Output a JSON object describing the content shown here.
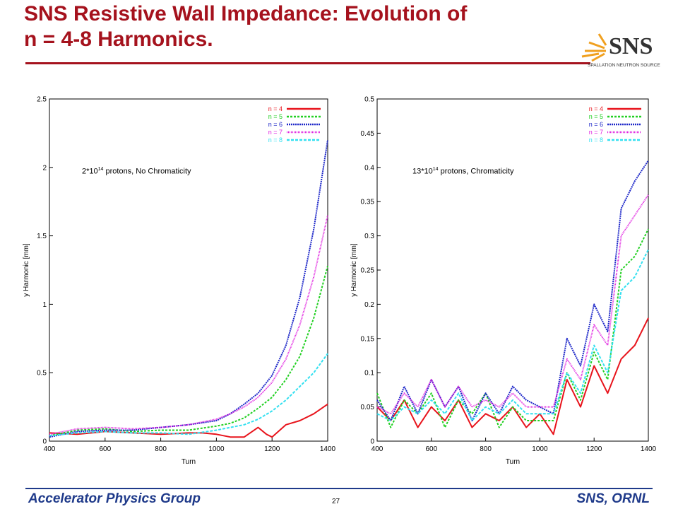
{
  "slide": {
    "title_line1": "SNS Resistive Wall Impedance: Evolution of",
    "title_line2": "n = 4-8 Harmonics.",
    "logo_text": "SNS",
    "logo_subtitle": "SPALLATION NEUTRON SOURCE",
    "footer_left": "Accelerator Physics Group",
    "footer_right": "SNS, ORNL",
    "page_number": "27",
    "colors": {
      "title": "#a5121d",
      "footer": "#1f3a8a"
    }
  },
  "chart_data": [
    {
      "type": "line",
      "xlabel": "Turn",
      "ylabel": "y Harmonic [mm]",
      "annotation": {
        "base": "2*10",
        "sup": "14",
        "rest": " protons, No Chromaticity"
      },
      "xlim": [
        400,
        1400
      ],
      "ylim": [
        0,
        2.5
      ],
      "xticks": [
        400,
        600,
        800,
        1000,
        1200,
        1400
      ],
      "yticks": [
        0,
        0.5,
        1,
        1.5,
        2,
        2.5
      ],
      "ytick_labels": [
        "0",
        "0.5",
        "1",
        "1.5",
        "2",
        "2.5"
      ],
      "grid": false,
      "legend_position": "top-right",
      "series": [
        {
          "name": "n = 4",
          "color": "#e8141c",
          "dash": "none",
          "x": [
            400,
            500,
            600,
            700,
            800,
            900,
            950,
            1000,
            1050,
            1100,
            1150,
            1180,
            1200,
            1250,
            1300,
            1350,
            1400
          ],
          "y": [
            0.06,
            0.05,
            0.07,
            0.06,
            0.05,
            0.06,
            0.06,
            0.05,
            0.03,
            0.03,
            0.1,
            0.05,
            0.03,
            0.12,
            0.15,
            0.2,
            0.27
          ]
        },
        {
          "name": "n = 5",
          "color": "#22d022",
          "dash": "3,2",
          "x": [
            400,
            500,
            600,
            700,
            800,
            900,
            1000,
            1050,
            1100,
            1150,
            1200,
            1250,
            1300,
            1350,
            1400
          ],
          "y": [
            0.04,
            0.08,
            0.09,
            0.07,
            0.08,
            0.08,
            0.11,
            0.13,
            0.17,
            0.24,
            0.32,
            0.45,
            0.62,
            0.9,
            1.28
          ]
        },
        {
          "name": "n = 6",
          "color": "#1c26c8",
          "dash": "2,1",
          "x": [
            400,
            500,
            600,
            700,
            800,
            900,
            1000,
            1050,
            1100,
            1150,
            1200,
            1250,
            1300,
            1350,
            1400
          ],
          "y": [
            0.03,
            0.07,
            0.08,
            0.08,
            0.1,
            0.12,
            0.15,
            0.2,
            0.27,
            0.35,
            0.48,
            0.7,
            1.05,
            1.55,
            2.2
          ]
        },
        {
          "name": "n = 7",
          "color": "#e020e0",
          "dash": "1,1",
          "x": [
            400,
            500,
            600,
            700,
            800,
            900,
            1000,
            1050,
            1100,
            1150,
            1200,
            1250,
            1300,
            1350,
            1400
          ],
          "y": [
            0.05,
            0.09,
            0.1,
            0.09,
            0.1,
            0.12,
            0.16,
            0.2,
            0.25,
            0.32,
            0.43,
            0.6,
            0.85,
            1.2,
            1.65
          ]
        },
        {
          "name": "n = 8",
          "color": "#33e0f0",
          "dash": "4,2",
          "x": [
            400,
            500,
            600,
            700,
            800,
            900,
            1000,
            1050,
            1100,
            1150,
            1200,
            1250,
            1300,
            1350,
            1400
          ],
          "y": [
            0.04,
            0.06,
            0.07,
            0.06,
            0.06,
            0.05,
            0.08,
            0.1,
            0.12,
            0.16,
            0.22,
            0.3,
            0.4,
            0.5,
            0.64
          ]
        }
      ]
    },
    {
      "type": "line",
      "xlabel": "Turn",
      "ylabel": "y Harmonic [mm]",
      "annotation": {
        "base": "13*10",
        "sup": "14",
        "rest": " protons, Chromaticity"
      },
      "xlim": [
        400,
        1400
      ],
      "ylim": [
        0,
        0.5
      ],
      "xticks": [
        400,
        600,
        800,
        1000,
        1200,
        1400
      ],
      "yticks": [
        0,
        0.05,
        0.1,
        0.15,
        0.2,
        0.25,
        0.3,
        0.35,
        0.4,
        0.45,
        0.5
      ],
      "ytick_labels": [
        "0",
        "0.05",
        "0.1",
        "0.15",
        "0.2",
        "0.25",
        "0.3",
        "0.35",
        "0.4",
        "0.45",
        "0.5"
      ],
      "grid": false,
      "legend_position": "top-right",
      "series": [
        {
          "name": "n = 4",
          "color": "#e8141c",
          "dash": "none",
          "x": [
            400,
            450,
            500,
            550,
            600,
            650,
            700,
            750,
            800,
            850,
            900,
            950,
            1000,
            1050,
            1100,
            1150,
            1200,
            1250,
            1300,
            1350,
            1400
          ],
          "y": [
            0.05,
            0.03,
            0.06,
            0.02,
            0.05,
            0.03,
            0.06,
            0.02,
            0.04,
            0.03,
            0.05,
            0.02,
            0.04,
            0.01,
            0.09,
            0.05,
            0.11,
            0.07,
            0.12,
            0.14,
            0.18
          ]
        },
        {
          "name": "n = 5",
          "color": "#22d022",
          "dash": "3,2",
          "x": [
            400,
            450,
            500,
            550,
            600,
            650,
            700,
            750,
            800,
            850,
            900,
            950,
            1000,
            1050,
            1100,
            1150,
            1200,
            1250,
            1300,
            1350,
            1400
          ],
          "y": [
            0.07,
            0.02,
            0.06,
            0.04,
            0.07,
            0.02,
            0.06,
            0.04,
            0.07,
            0.02,
            0.05,
            0.03,
            0.03,
            0.03,
            0.1,
            0.06,
            0.13,
            0.09,
            0.25,
            0.27,
            0.31
          ]
        },
        {
          "name": "n = 6",
          "color": "#1c26c8",
          "dash": "2,1",
          "x": [
            400,
            450,
            500,
            550,
            600,
            650,
            700,
            750,
            800,
            850,
            900,
            950,
            1000,
            1050,
            1100,
            1150,
            1200,
            1250,
            1300,
            1350,
            1400
          ],
          "y": [
            0.06,
            0.03,
            0.08,
            0.04,
            0.09,
            0.05,
            0.08,
            0.03,
            0.07,
            0.04,
            0.08,
            0.06,
            0.05,
            0.04,
            0.15,
            0.11,
            0.2,
            0.16,
            0.34,
            0.38,
            0.41
          ]
        },
        {
          "name": "n = 7",
          "color": "#e020e0",
          "dash": "1,1",
          "x": [
            400,
            450,
            500,
            550,
            600,
            650,
            700,
            750,
            800,
            850,
            900,
            950,
            1000,
            1050,
            1100,
            1150,
            1200,
            1250,
            1300,
            1350,
            1400
          ],
          "y": [
            0.05,
            0.04,
            0.07,
            0.05,
            0.09,
            0.05,
            0.08,
            0.05,
            0.06,
            0.05,
            0.07,
            0.05,
            0.05,
            0.05,
            0.12,
            0.09,
            0.17,
            0.14,
            0.3,
            0.33,
            0.36
          ]
        },
        {
          "name": "n = 8",
          "color": "#33e0f0",
          "dash": "4,2",
          "x": [
            400,
            450,
            500,
            550,
            600,
            650,
            700,
            750,
            800,
            850,
            900,
            950,
            1000,
            1050,
            1100,
            1150,
            1200,
            1250,
            1300,
            1350,
            1400
          ],
          "y": [
            0.04,
            0.03,
            0.05,
            0.04,
            0.06,
            0.04,
            0.07,
            0.03,
            0.05,
            0.04,
            0.06,
            0.04,
            0.04,
            0.04,
            0.1,
            0.07,
            0.14,
            0.1,
            0.22,
            0.24,
            0.28
          ]
        }
      ]
    }
  ]
}
